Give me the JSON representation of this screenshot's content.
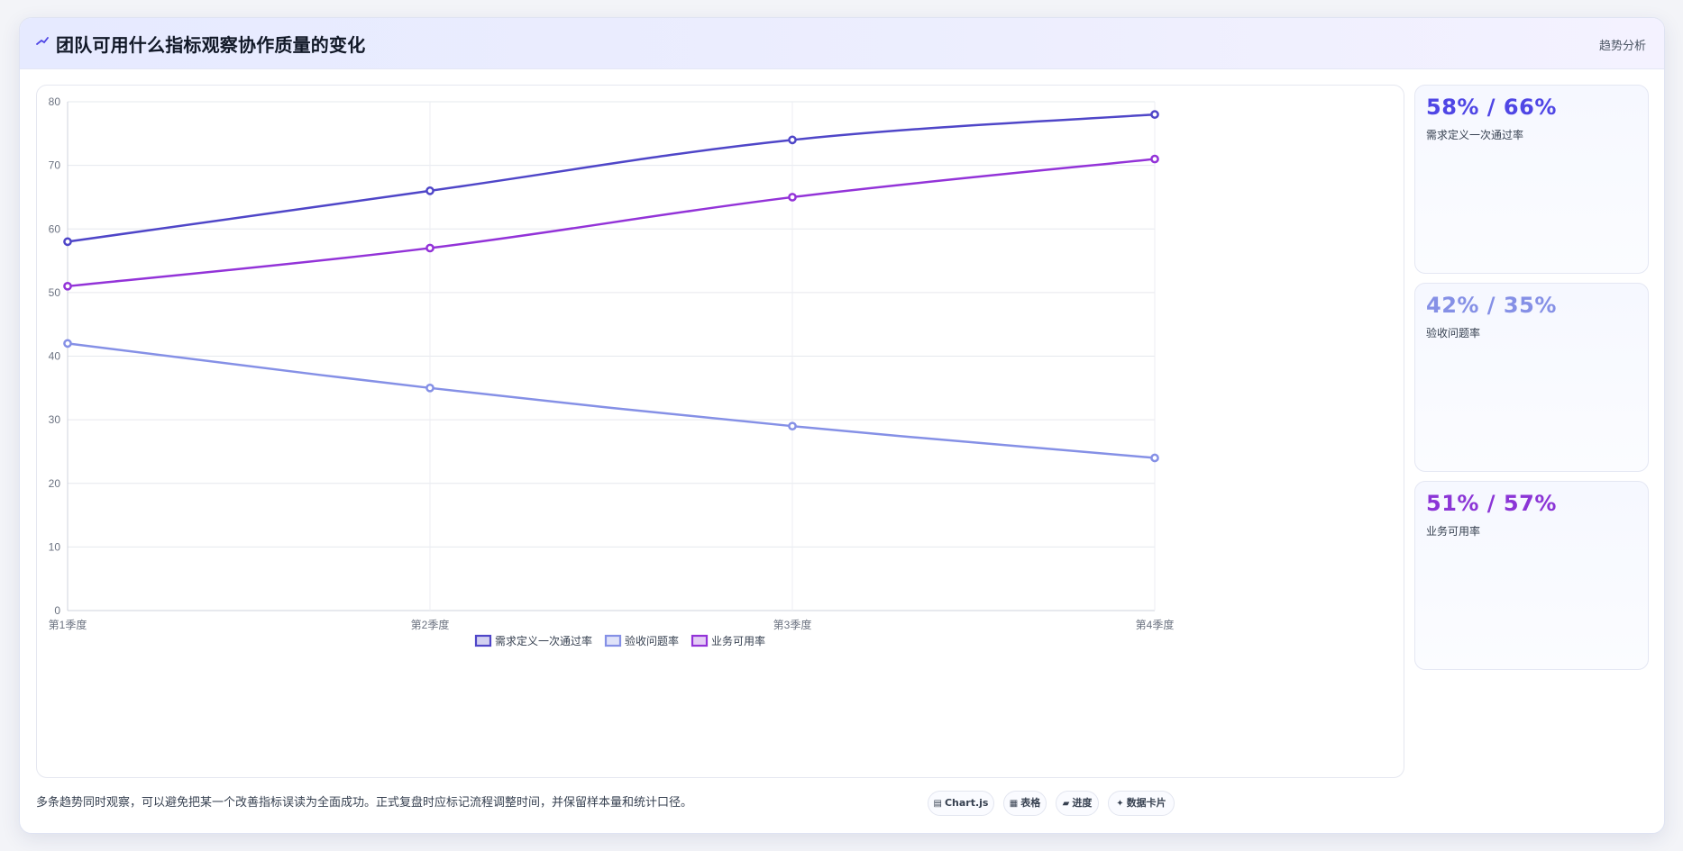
{
  "header": {
    "icon": "trend-line-icon",
    "title": "团队可用什么指标观察协作质量的变化",
    "tag": "趋势分析"
  },
  "chart_data": {
    "type": "line",
    "categories": [
      "第1季度",
      "第2季度",
      "第3季度",
      "第4季度"
    ],
    "series": [
      {
        "name": "需求定义一次通过率",
        "values": [
          58,
          66,
          74,
          78
        ],
        "color": "#4f46c8"
      },
      {
        "name": "验收问题率",
        "values": [
          42,
          35,
          29,
          24
        ],
        "color": "#8590e6"
      },
      {
        "name": "业务可用率",
        "values": [
          51,
          57,
          65,
          71
        ],
        "color": "#9333d8"
      }
    ],
    "ylim": [
      0,
      80
    ],
    "yticks": [
      0,
      10,
      20,
      30,
      40,
      50,
      60,
      70,
      80
    ],
    "grid": true,
    "legend": "bottom-center",
    "title": "",
    "xlabel": "",
    "ylabel": ""
  },
  "stats": [
    {
      "value": "58% / 66%",
      "label": "需求定义一次通过率",
      "color": "#4f46e5"
    },
    {
      "value": "42% / 35%",
      "label": "验收问题率",
      "color": "#8590e6"
    },
    {
      "value": "51% / 57%",
      "label": "业务可用率",
      "color": "#8b35d6"
    }
  ],
  "footnote": "多条趋势同时观察，可以避免把某一个改善指标误读为全面成功。正式复盘时应标记流程调整时间，并保留样本量和统计口径。",
  "chips": [
    {
      "icon": "chart-icon",
      "glyph": "▤",
      "label": "Chart.js"
    },
    {
      "icon": "table-icon",
      "glyph": "▦",
      "label": "表格"
    },
    {
      "icon": "progress-icon",
      "glyph": "▰",
      "label": "进度"
    },
    {
      "icon": "sparkle-icon",
      "glyph": "✦",
      "label": "数据卡片"
    }
  ]
}
